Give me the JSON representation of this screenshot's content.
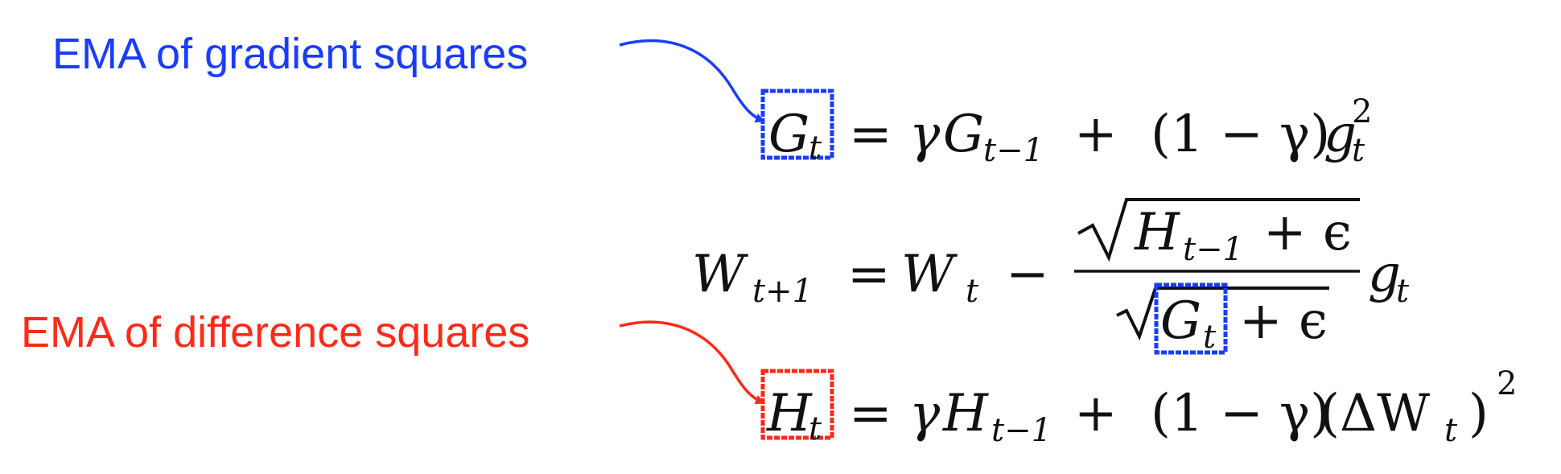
{
  "annotations": {
    "gradient_label": "EMA of gradient squares",
    "difference_label": "EMA of difference squares"
  },
  "colors": {
    "gradient": "#1a3cff",
    "difference": "#ff2a1a",
    "math": "#111111"
  },
  "equations": {
    "eq1": {
      "G": "G",
      "t": "t",
      "eq": "=",
      "gamma": "γ",
      "Gprev": "G",
      "tm1": "t−1",
      "plus": "+",
      "lp": "(1 − γ)",
      "g": "g",
      "t2": "t",
      "sq": "2"
    },
    "eq2": {
      "W": "W",
      "tp1": "t+1",
      "eq": "=",
      "W2": "W",
      "t": "t",
      "minus": "−",
      "H": "H",
      "tm1": "t−1",
      "plus_eps_num": "+ ϵ",
      "G": "G",
      "t2": "t",
      "plus_eps_den": "+ ϵ",
      "g": "g",
      "t3": "t"
    },
    "eq3": {
      "H": "H",
      "t": "t",
      "eq": "=",
      "gamma": "γ",
      "Hprev": "H",
      "tm1": "t−1",
      "plus": "+",
      "lp": "(1 − γ)",
      "delta": "(ΔW",
      "t2": "t",
      "rp": ")",
      "sq": "2"
    }
  }
}
